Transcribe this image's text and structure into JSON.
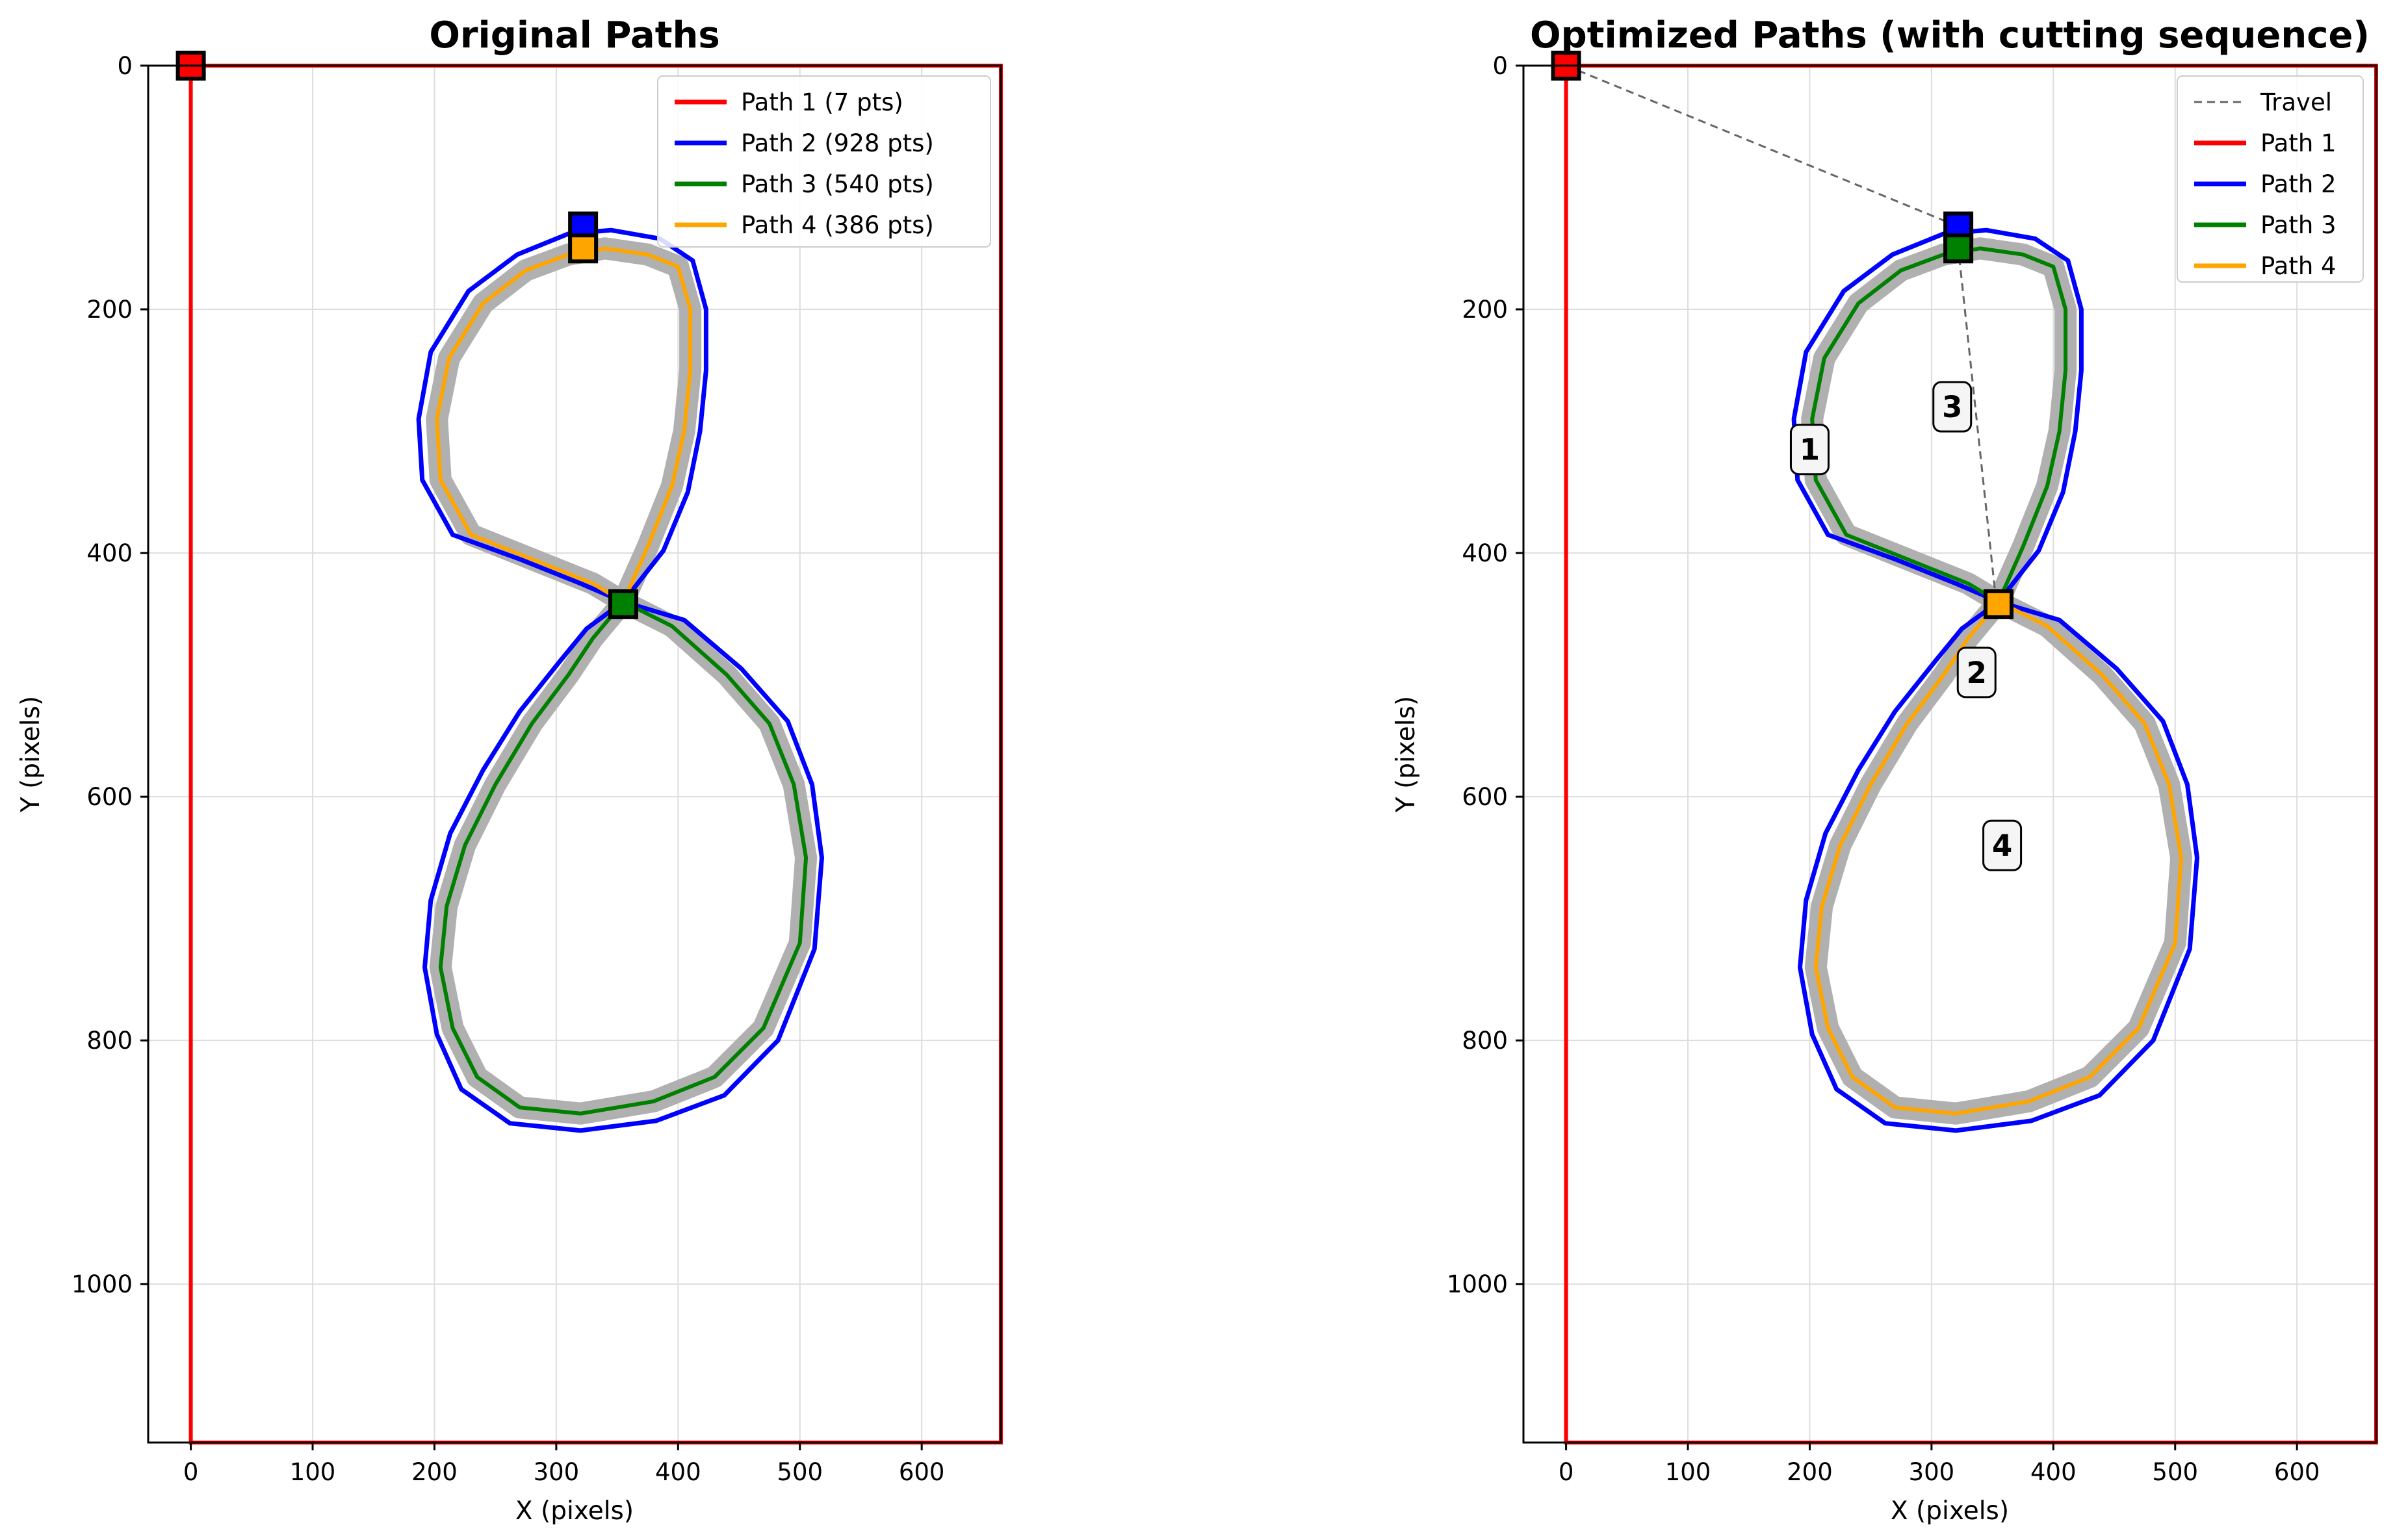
{
  "chart_data": [
    {
      "type": "line",
      "title": "Original Paths",
      "xlabel": "X (pixels)",
      "ylabel": "Y (pixels)",
      "xlim": [
        -35,
        665
      ],
      "ylim": [
        1130,
        0
      ],
      "xticks": [
        0,
        100,
        200,
        300,
        400,
        500,
        600
      ],
      "yticks": [
        0,
        200,
        400,
        600,
        800,
        1000
      ],
      "grid": true,
      "legend_position": "top-right",
      "series": [
        {
          "name": "Path 1 (7 pts)",
          "color": "#ff0000",
          "start": [
            0,
            0
          ]
        },
        {
          "name": "Path 2 (928 pts)",
          "color": "#0000ff",
          "start": [
            322,
            132
          ]
        },
        {
          "name": "Path 3 (540 pts)",
          "color": "#008000",
          "start": [
            355,
            442
          ]
        },
        {
          "name": "Path 4 (386 pts)",
          "color": "#ffa500",
          "start": [
            322,
            150
          ]
        }
      ]
    },
    {
      "type": "line",
      "title": "Optimized Paths (with cutting sequence)",
      "xlabel": "X (pixels)",
      "ylabel": "Y (pixels)",
      "xlim": [
        -35,
        665
      ],
      "ylim": [
        1130,
        0
      ],
      "xticks": [
        0,
        100,
        200,
        300,
        400,
        500,
        600
      ],
      "yticks": [
        0,
        200,
        400,
        600,
        800,
        1000
      ],
      "grid": true,
      "legend_position": "top-right",
      "series": [
        {
          "name": "Travel",
          "color": "#666666",
          "style": "dashed"
        },
        {
          "name": "Path 1",
          "color": "#ff0000",
          "start": [
            0,
            0
          ]
        },
        {
          "name": "Path 2",
          "color": "#0000ff",
          "start": [
            322,
            132
          ]
        },
        {
          "name": "Path 3",
          "color": "#008000",
          "start": [
            322,
            150
          ]
        },
        {
          "name": "Path 4",
          "color": "#ffa500",
          "start": [
            355,
            442
          ]
        }
      ],
      "travel_points": [
        [
          0,
          0
        ],
        [
          322,
          132
        ],
        [
          322,
          150
        ],
        [
          352,
          430
        ],
        [
          355,
          442
        ]
      ],
      "sequence_labels": [
        {
          "text": "1",
          "x": 200,
          "y": 315
        },
        {
          "text": "2",
          "x": 337,
          "y": 498
        },
        {
          "text": "3",
          "x": 317,
          "y": 280
        },
        {
          "text": "4",
          "x": 358,
          "y": 640
        }
      ]
    }
  ]
}
